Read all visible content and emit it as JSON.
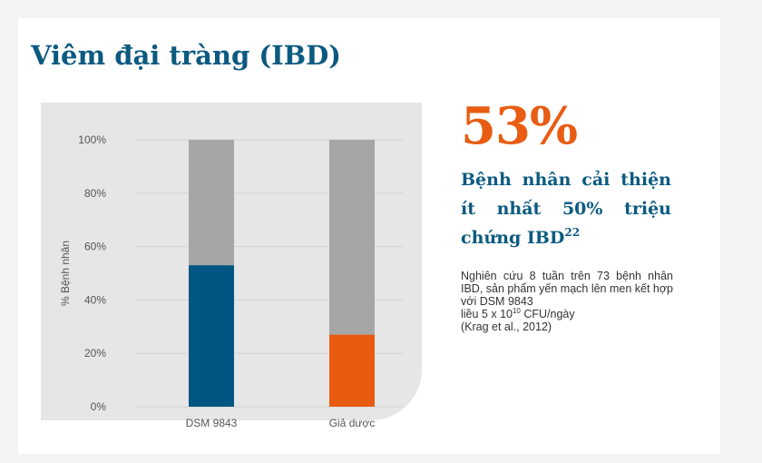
{
  "title": "Viêm đại tràng (IBD)",
  "stat": {
    "value": "53%",
    "headline": "Bệnh nhân cải thiện ít nhất 50% triệu chứng IBD",
    "headline_superscript": "22",
    "description_lines": [
      "Nghiên cứu 8 tuần trên 73 bệnh nhân IBD, sản phẩm yến mạch lên men kết hợp với DSM 9843",
      "liều 5 x 10",
      "10",
      " CFU/ngày",
      "(Krag et al., 2012)"
    ]
  },
  "chart_data": {
    "type": "bar",
    "stacked": true,
    "categories": [
      "DSM 9843",
      "Giả dược"
    ],
    "values": [
      53,
      27
    ],
    "remainder_to": 100,
    "ylabel": "% Bệnh nhân",
    "xlabel": "",
    "ylim": [
      0,
      100
    ],
    "yticks": [
      0,
      20,
      40,
      60,
      80,
      100
    ],
    "ytick_labels": [
      "0%",
      "20%",
      "40%",
      "60%",
      "80%",
      "100%"
    ],
    "grid": true,
    "colors": {
      "bars": [
        "#005682",
        "#e85c12"
      ],
      "remainder": "#a6a6a6",
      "grid": "#d3d3d3"
    }
  }
}
